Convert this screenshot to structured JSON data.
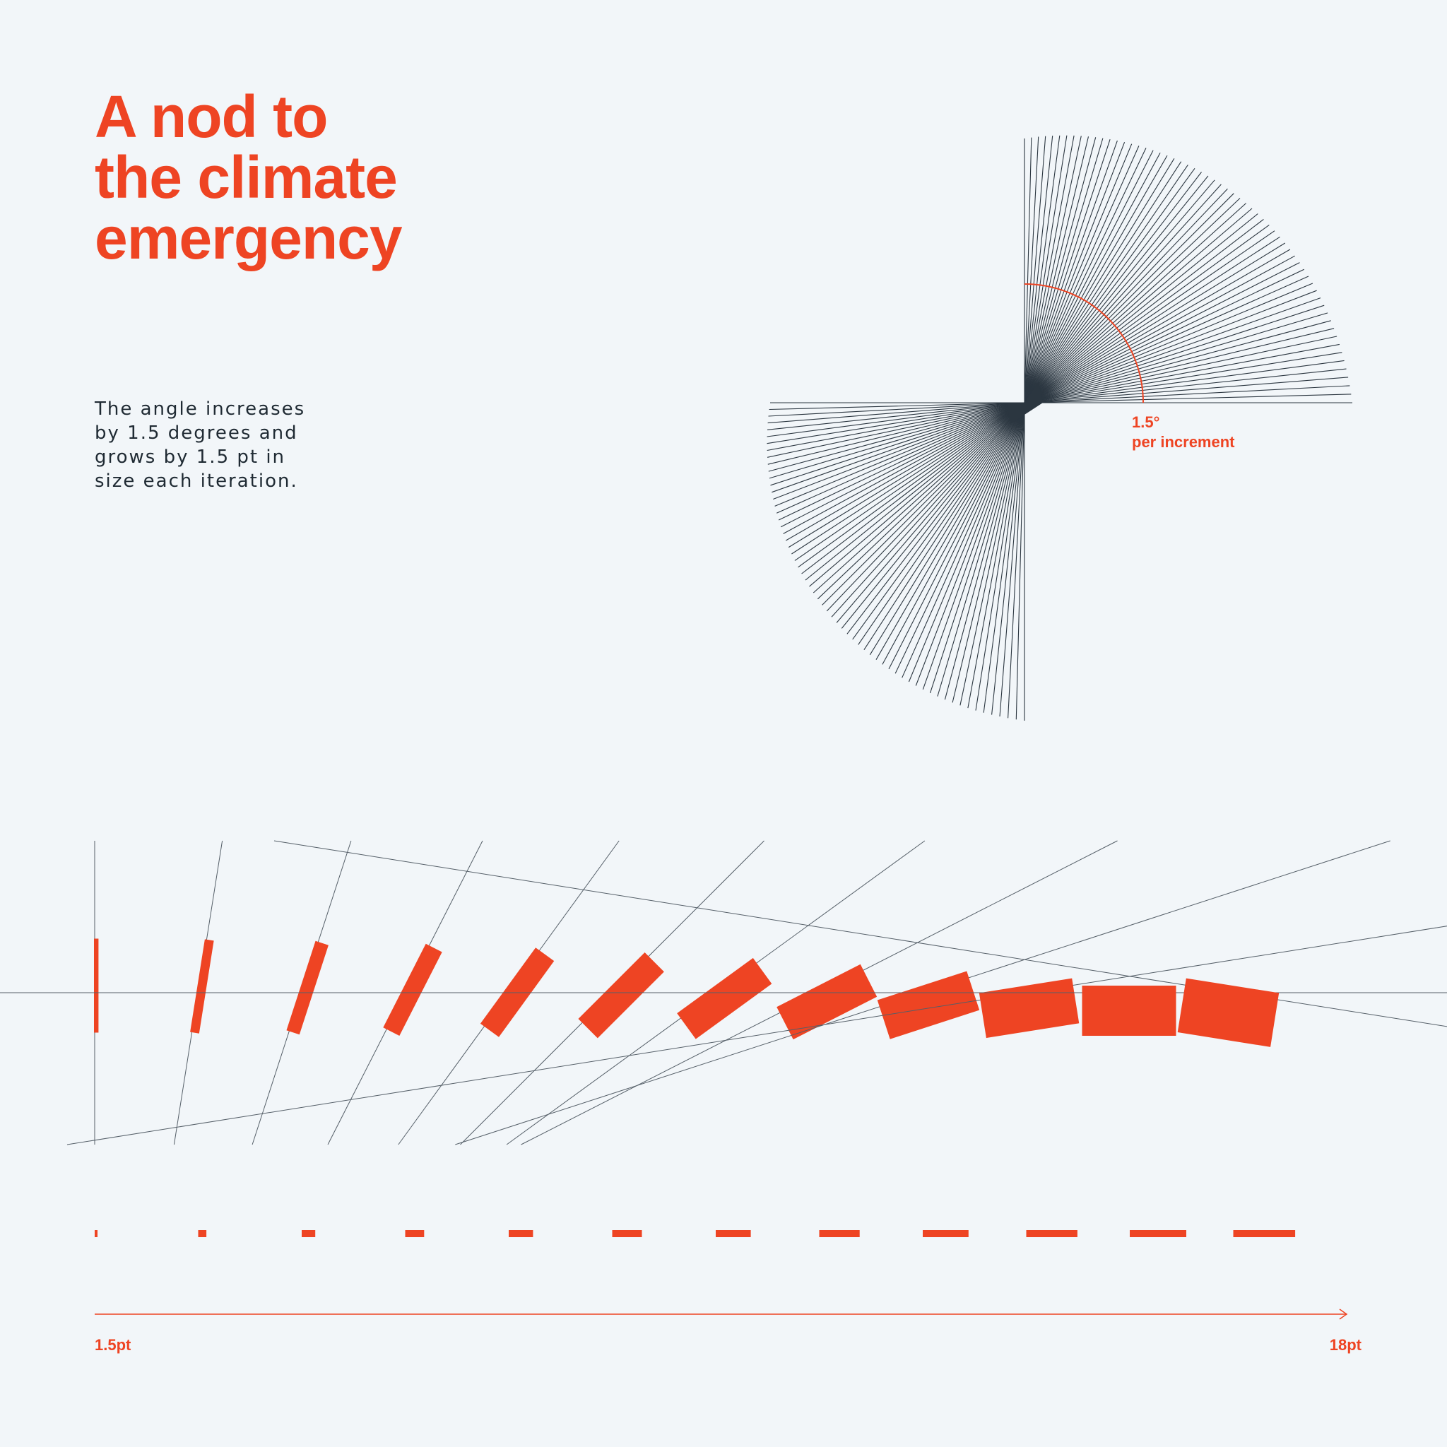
{
  "colors": {
    "background": "#f2f6f9",
    "accent": "#ee4423",
    "ink": "#2b3640"
  },
  "title": {
    "lines": [
      "A nod to",
      "the climate",
      "emergency"
    ]
  },
  "description": {
    "lines": [
      "The angle increases",
      "by 1.5 degrees and",
      "grows by 1.5 pt in",
      "size each iteration."
    ]
  },
  "fan": {
    "angle_label": "1.5°",
    "increment_label": "per increment",
    "angle_step_deg": 1.5,
    "line_count": 61
  },
  "progression": {
    "steps": 12,
    "angle_step_deg": 1.5,
    "size_start_pt": 1.5,
    "size_step_pt": 1.5,
    "axis_start_label": "1.5pt",
    "axis_end_label": "18pt"
  }
}
